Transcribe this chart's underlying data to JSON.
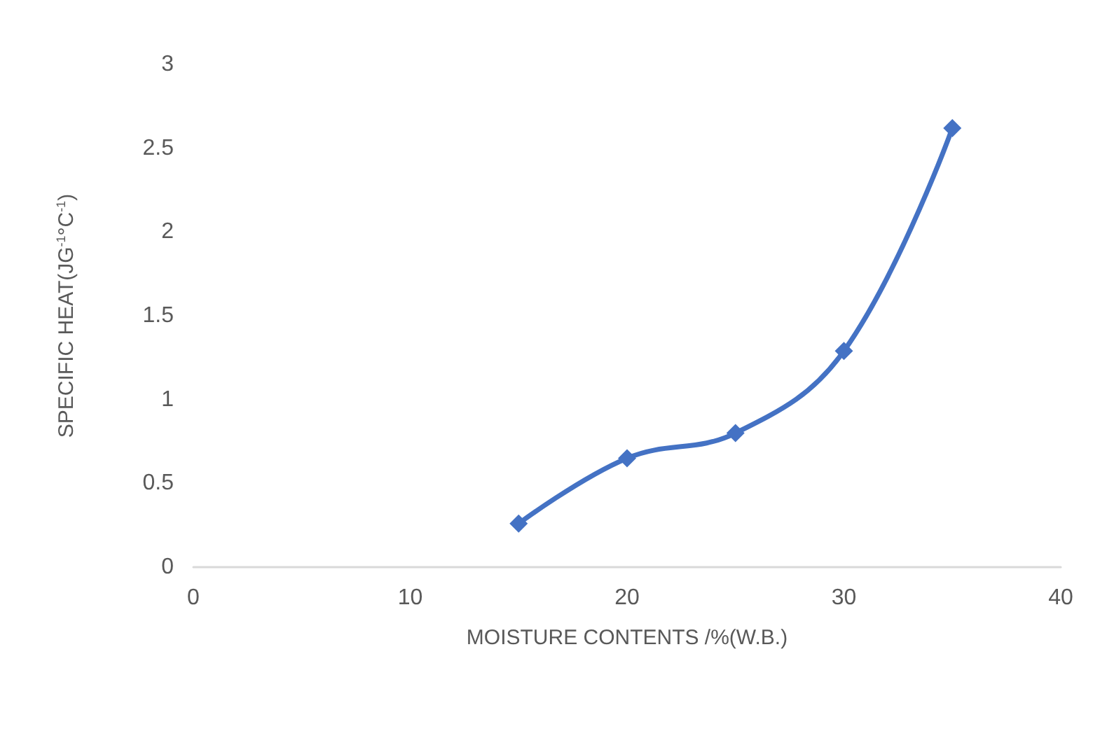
{
  "chart_data": {
    "type": "line",
    "xlabel": "MOISTURE CONTENTS /%(W.B.)",
    "ylabel": "SPECIFIC HEAT(JG$^{-1}$°C$^{-1}$)",
    "x": [
      15,
      20,
      25,
      30,
      35
    ],
    "series": [
      {
        "color": "#4472c4",
        "values": [
          0.26,
          0.65,
          0.8,
          1.29,
          2.62
        ]
      }
    ],
    "xlim": [
      0,
      40
    ],
    "xticks": [
      0,
      10,
      20,
      30,
      40
    ],
    "ylim": [
      0,
      3
    ],
    "yticks": [
      0,
      0.5,
      1,
      1.5,
      2,
      2.5,
      3
    ],
    "grid": false,
    "marker": "diamond",
    "line_style": "solid"
  }
}
